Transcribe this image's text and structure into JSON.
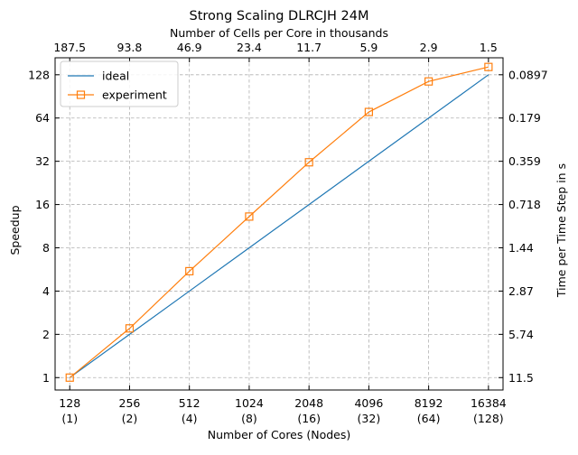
{
  "chart_data": {
    "type": "line",
    "title": "Strong Scaling DLRCJH 24M",
    "xlabel": "Number of Cores (Nodes)",
    "ylabel": "Speedup",
    "x2label": "Number of Cells per Core in thousands",
    "y2label": "Time per Time Step in s",
    "x_scale": "log2",
    "y_scale": "log2",
    "xlim": [
      108,
      19400
    ],
    "ylim": [
      0.82,
      168
    ],
    "grid": true,
    "grid_style": "dashed",
    "legend_position": "top-left",
    "x_ticks": [
      128,
      256,
      512,
      1024,
      2048,
      4096,
      8192,
      16384
    ],
    "x_tick_labels": [
      "128",
      "256",
      "512",
      "1024",
      "2048",
      "4096",
      "8192",
      "16384"
    ],
    "x_tick_sublabels": [
      "(1)",
      "(2)",
      "(4)",
      "(8)",
      "(16)",
      "(32)",
      "(64)",
      "(128)"
    ],
    "x2_tick_labels": [
      "187.5",
      "93.8",
      "46.9",
      "23.4",
      "11.7",
      "5.9",
      "2.9",
      "1.5"
    ],
    "y_ticks": [
      1,
      2,
      4,
      8,
      16,
      32,
      64,
      128
    ],
    "y_tick_labels": [
      "1",
      "2",
      "4",
      "8",
      "16",
      "32",
      "64",
      "128"
    ],
    "y2_tick_labels": [
      "11.5",
      "5.74",
      "2.87",
      "1.44",
      "0.718",
      "0.359",
      "0.179",
      "0.0897"
    ],
    "series": [
      {
        "name": "ideal",
        "color": "#1f77b4",
        "marker": "none",
        "x": [
          128,
          256,
          512,
          1024,
          2048,
          4096,
          8192,
          16384
        ],
        "y": [
          1,
          2,
          4,
          8,
          16,
          32,
          64,
          128
        ]
      },
      {
        "name": "experiment",
        "color": "#ff7f0e",
        "marker": "open-square",
        "x": [
          128,
          256,
          512,
          1024,
          2048,
          4096,
          8192,
          16384
        ],
        "y": [
          1,
          2.2,
          5.5,
          13.2,
          31.5,
          70.5,
          115,
          145
        ]
      }
    ]
  }
}
